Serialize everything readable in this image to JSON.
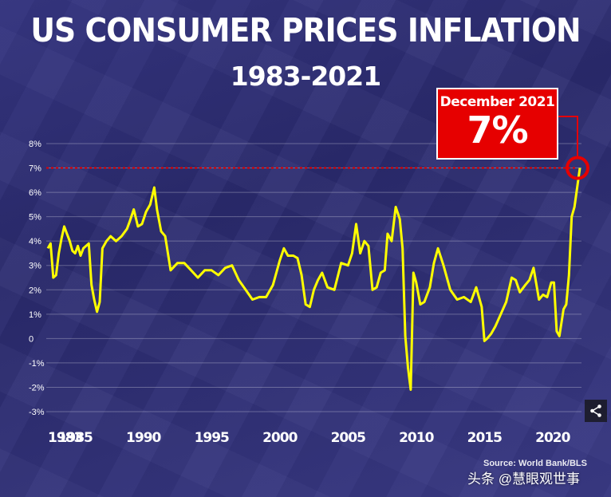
{
  "title": "US CONSUMER PRICES INFLATION",
  "subtitle": "1983-2021",
  "callout": {
    "date": "December 2021",
    "value": "7%"
  },
  "source": "Source: World Bank/BLS",
  "watermark": "头条 @慧眼观世事",
  "share_icon": "share-icon",
  "colors": {
    "line": "#ffff00",
    "callout": "#e60000",
    "reference": "#e60000",
    "text": "#ffffff"
  },
  "chart_data": {
    "type": "line",
    "title": "US CONSUMER PRICES INFLATION",
    "subtitle": "1983-2021",
    "ylim": [
      -3,
      8
    ],
    "xlim": [
      1983,
      2022
    ],
    "yticks": [
      8,
      7,
      6,
      5,
      4,
      3,
      2,
      1,
      0,
      -1,
      -2,
      -3
    ],
    "ytick_labels": [
      "8%",
      "7%",
      "6%",
      "5%",
      "4%",
      "3%",
      "2%",
      "1%",
      "0",
      "-1%",
      "-2%",
      "-3%"
    ],
    "xticks": [
      1983,
      1985,
      1990,
      1995,
      2000,
      2005,
      2010,
      2015,
      2020
    ],
    "xtick_labels": [
      "1983",
      "1985",
      "1990",
      "1995",
      "2000",
      "2005",
      "2010",
      "2015",
      "2020"
    ],
    "grid": true,
    "reference_line": 7,
    "series": [
      {
        "x": [
          1983.0,
          1983.2,
          1983.4,
          1983.6,
          1983.8,
          1984.0,
          1984.2,
          1984.4,
          1984.6,
          1984.8,
          1985.0,
          1985.2,
          1985.4,
          1985.6,
          1985.8,
          1986.0,
          1986.2,
          1986.4,
          1986.6,
          1986.8,
          1987.0,
          1987.3,
          1987.6,
          1988.0,
          1988.4,
          1988.8,
          1989.0,
          1989.3,
          1989.6,
          1989.9,
          1990.2,
          1990.5,
          1990.8,
          1991.0,
          1991.3,
          1991.6,
          1992.0,
          1992.5,
          1993.0,
          1993.5,
          1994.0,
          1994.5,
          1995.0,
          1995.5,
          1996.0,
          1996.5,
          1997.0,
          1997.5,
          1998.0,
          1998.5,
          1999.0,
          1999.5,
          2000.0,
          2000.3,
          2000.6,
          2001.0,
          2001.3,
          2001.6,
          2001.9,
          2002.2,
          2002.5,
          2002.8,
          2003.1,
          2003.5,
          2004.0,
          2004.5,
          2005.0,
          2005.3,
          2005.6,
          2005.9,
          2006.2,
          2006.5,
          2006.8,
          2007.1,
          2007.4,
          2007.7,
          2007.9,
          2008.2,
          2008.5,
          2008.8,
          2009.0,
          2009.2,
          2009.4,
          2009.6,
          2009.8,
          2010.0,
          2010.3,
          2010.6,
          2011.0,
          2011.3,
          2011.6,
          2012.0,
          2012.5,
          2013.0,
          2013.5,
          2014.0,
          2014.4,
          2014.8,
          2015.0,
          2015.2,
          2015.5,
          2015.8,
          2016.2,
          2016.6,
          2017.0,
          2017.3,
          2017.6,
          2018.0,
          2018.3,
          2018.6,
          2019.0,
          2019.3,
          2019.6,
          2019.9,
          2020.1,
          2020.3,
          2020.5,
          2020.8,
          2021.0,
          2021.2,
          2021.4,
          2021.6,
          2021.8,
          2022.0
        ],
        "y": [
          3.7,
          3.9,
          2.5,
          2.6,
          3.5,
          4.1,
          4.6,
          4.3,
          4.0,
          3.6,
          3.5,
          3.8,
          3.4,
          3.7,
          3.8,
          3.9,
          2.2,
          1.6,
          1.1,
          1.5,
          3.7,
          4.0,
          4.2,
          4.0,
          4.2,
          4.5,
          4.8,
          5.3,
          4.6,
          4.7,
          5.2,
          5.5,
          6.2,
          5.3,
          4.4,
          4.2,
          2.8,
          3.1,
          3.1,
          2.8,
          2.5,
          2.8,
          2.8,
          2.6,
          2.9,
          3.0,
          2.4,
          2.0,
          1.6,
          1.7,
          1.7,
          2.2,
          3.2,
          3.7,
          3.4,
          3.4,
          3.3,
          2.6,
          1.4,
          1.3,
          2.0,
          2.4,
          2.7,
          2.1,
          2.0,
          3.1,
          3.0,
          3.5,
          4.7,
          3.5,
          4.0,
          3.8,
          2.0,
          2.1,
          2.7,
          2.8,
          4.3,
          4.0,
          5.4,
          4.9,
          3.7,
          0.1,
          -1.2,
          -2.1,
          2.7,
          2.3,
          1.4,
          1.5,
          2.1,
          3.1,
          3.7,
          3.0,
          2.0,
          1.6,
          1.7,
          1.5,
          2.1,
          1.3,
          -0.1,
          0.0,
          0.2,
          0.5,
          1.0,
          1.5,
          2.5,
          2.4,
          1.9,
          2.2,
          2.4,
          2.9,
          1.6,
          1.8,
          1.7,
          2.3,
          2.3,
          0.3,
          0.1,
          1.2,
          1.4,
          2.6,
          5.0,
          5.4,
          6.2,
          7.0
        ]
      }
    ]
  }
}
